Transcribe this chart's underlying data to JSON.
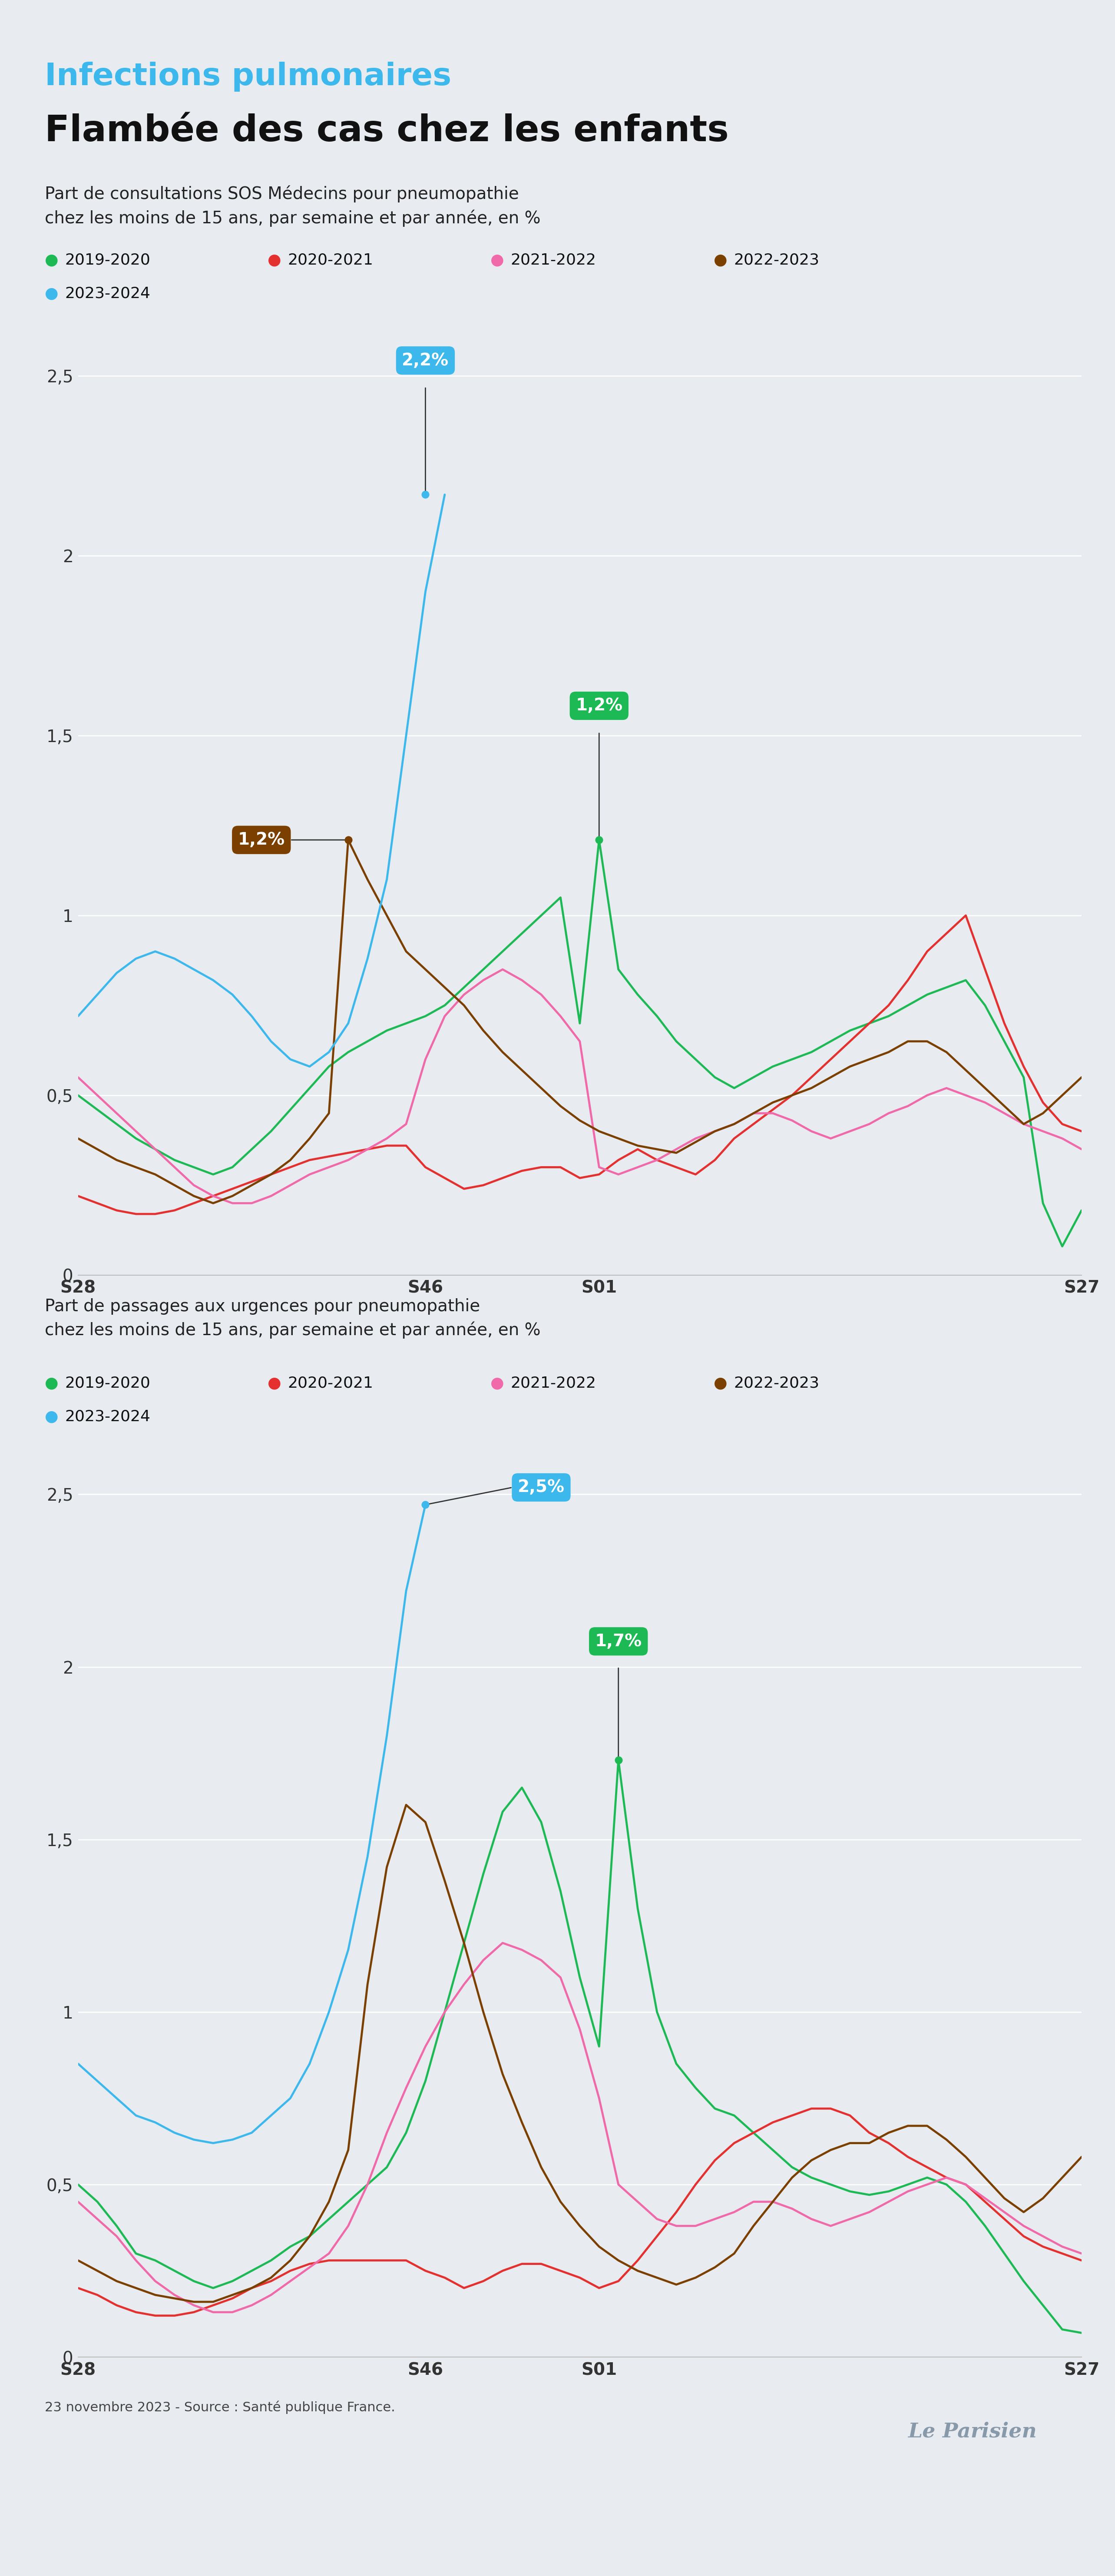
{
  "bg_color": "#e8ecf0",
  "title_line1": "Infections pulmonaires",
  "title_line2": "Flambée des cas chez les enfants",
  "title_color1": "#3db8ec",
  "title_color2": "#111111",
  "subtitle1": "Part de consultations SOS Médecins pour pneumopathie\nchez les moins de 15 ans, par semaine et par année, en %",
  "subtitle2": "Part de passages aux urgences pour pneumopathie\nchez les moins de 15 ans, par semaine et par année, en %",
  "legend_labels": [
    "2019-2020",
    "2020-2021",
    "2021-2022",
    "2022-2023",
    "2023-2024"
  ],
  "legend_colors": [
    "#1db954",
    "#e53030",
    "#f06aaa",
    "#7B3F00",
    "#3db8ec"
  ],
  "xtick_labels": [
    "S28",
    "S46",
    "S01",
    "S27"
  ],
  "xtick_positions": [
    0,
    18,
    27,
    52
  ],
  "chart1": {
    "annotation_blue": {
      "label": "2,2%",
      "x_dot": 18,
      "y_dot": 2.17,
      "x_txt": 18,
      "y_txt": 2.52
    },
    "annotation_green": {
      "label": "1,2%",
      "x_dot": 27,
      "y_dot": 1.21,
      "x_txt": 27,
      "y_txt": 1.56
    },
    "annotation_brown": {
      "label": "1,2%",
      "x_dot": 14,
      "y_dot": 1.21,
      "x_txt": 9.5,
      "y_txt": 1.21
    },
    "ylim": [
      0,
      2.65
    ],
    "yticks": [
      0,
      0.5,
      1.0,
      1.5,
      2.0,
      2.5
    ],
    "series": {
      "green": [
        0.5,
        0.46,
        0.42,
        0.38,
        0.35,
        0.32,
        0.3,
        0.28,
        0.3,
        0.35,
        0.4,
        0.46,
        0.52,
        0.58,
        0.62,
        0.65,
        0.68,
        0.7,
        0.72,
        0.75,
        0.8,
        0.85,
        0.9,
        0.95,
        1.0,
        1.05,
        0.7,
        1.21,
        0.85,
        0.78,
        0.72,
        0.65,
        0.6,
        0.55,
        0.52,
        0.55,
        0.58,
        0.6,
        0.62,
        0.65,
        0.68,
        0.7,
        0.72,
        0.75,
        0.78,
        0.8,
        0.82,
        0.75,
        0.65,
        0.55,
        0.2,
        0.08,
        0.18
      ],
      "red": [
        0.22,
        0.2,
        0.18,
        0.17,
        0.17,
        0.18,
        0.2,
        0.22,
        0.24,
        0.26,
        0.28,
        0.3,
        0.32,
        0.33,
        0.34,
        0.35,
        0.36,
        0.36,
        0.3,
        0.27,
        0.24,
        0.25,
        0.27,
        0.29,
        0.3,
        0.3,
        0.27,
        0.28,
        0.32,
        0.35,
        0.32,
        0.3,
        0.28,
        0.32,
        0.38,
        0.42,
        0.46,
        0.5,
        0.55,
        0.6,
        0.65,
        0.7,
        0.75,
        0.82,
        0.9,
        0.95,
        1.0,
        0.85,
        0.7,
        0.58,
        0.48,
        0.42,
        0.4
      ],
      "pink": [
        0.55,
        0.5,
        0.45,
        0.4,
        0.35,
        0.3,
        0.25,
        0.22,
        0.2,
        0.2,
        0.22,
        0.25,
        0.28,
        0.3,
        0.32,
        0.35,
        0.38,
        0.42,
        0.6,
        0.72,
        0.78,
        0.82,
        0.85,
        0.82,
        0.78,
        0.72,
        0.65,
        0.3,
        0.28,
        0.3,
        0.32,
        0.35,
        0.38,
        0.4,
        0.42,
        0.45,
        0.45,
        0.43,
        0.4,
        0.38,
        0.4,
        0.42,
        0.45,
        0.47,
        0.5,
        0.52,
        0.5,
        0.48,
        0.45,
        0.42,
        0.4,
        0.38,
        0.35
      ],
      "brown": [
        0.38,
        0.35,
        0.32,
        0.3,
        0.28,
        0.25,
        0.22,
        0.2,
        0.22,
        0.25,
        0.28,
        0.32,
        0.38,
        0.45,
        1.21,
        1.1,
        1.0,
        0.9,
        0.85,
        0.8,
        0.75,
        0.68,
        0.62,
        0.57,
        0.52,
        0.47,
        0.43,
        0.4,
        0.38,
        0.36,
        0.35,
        0.34,
        0.37,
        0.4,
        0.42,
        0.45,
        0.48,
        0.5,
        0.52,
        0.55,
        0.58,
        0.6,
        0.62,
        0.65,
        0.65,
        0.62,
        0.57,
        0.52,
        0.47,
        0.42,
        0.45,
        0.5,
        0.55
      ],
      "blue": [
        0.72,
        0.78,
        0.84,
        0.88,
        0.9,
        0.88,
        0.85,
        0.82,
        0.78,
        0.72,
        0.65,
        0.6,
        0.58,
        0.62,
        0.7,
        0.88,
        1.1,
        1.5,
        1.9,
        2.17,
        null,
        null,
        null,
        null,
        null,
        null,
        null,
        null,
        null,
        null,
        null,
        null,
        null,
        null,
        null,
        null,
        null,
        null,
        null,
        null,
        null,
        null,
        null,
        null,
        null,
        null,
        null,
        null,
        null,
        null,
        null,
        null,
        null
      ]
    }
  },
  "chart2": {
    "annotation_blue": {
      "label": "2,5%",
      "x_dot": 18,
      "y_dot": 2.47,
      "x_txt": 24,
      "y_txt": 2.52
    },
    "annotation_green": {
      "label": "1,7%",
      "x_dot": 28,
      "y_dot": 1.73,
      "x_txt": 28,
      "y_txt": 2.05
    },
    "ylim": [
      0,
      2.65
    ],
    "yticks": [
      0,
      0.5,
      1.0,
      1.5,
      2.0,
      2.5
    ],
    "series": {
      "green": [
        0.5,
        0.45,
        0.38,
        0.3,
        0.28,
        0.25,
        0.22,
        0.2,
        0.22,
        0.25,
        0.28,
        0.32,
        0.35,
        0.4,
        0.45,
        0.5,
        0.55,
        0.65,
        0.8,
        1.0,
        1.2,
        1.4,
        1.58,
        1.65,
        1.55,
        1.35,
        1.1,
        0.9,
        1.73,
        1.3,
        1.0,
        0.85,
        0.78,
        0.72,
        0.7,
        0.65,
        0.6,
        0.55,
        0.52,
        0.5,
        0.48,
        0.47,
        0.48,
        0.5,
        0.52,
        0.5,
        0.45,
        0.38,
        0.3,
        0.22,
        0.15,
        0.08,
        0.07
      ],
      "red": [
        0.2,
        0.18,
        0.15,
        0.13,
        0.12,
        0.12,
        0.13,
        0.15,
        0.17,
        0.2,
        0.22,
        0.25,
        0.27,
        0.28,
        0.28,
        0.28,
        0.28,
        0.28,
        0.25,
        0.23,
        0.2,
        0.22,
        0.25,
        0.27,
        0.27,
        0.25,
        0.23,
        0.2,
        0.22,
        0.28,
        0.35,
        0.42,
        0.5,
        0.57,
        0.62,
        0.65,
        0.68,
        0.7,
        0.72,
        0.72,
        0.7,
        0.65,
        0.62,
        0.58,
        0.55,
        0.52,
        0.5,
        0.45,
        0.4,
        0.35,
        0.32,
        0.3,
        0.28
      ],
      "pink": [
        0.45,
        0.4,
        0.35,
        0.28,
        0.22,
        0.18,
        0.15,
        0.13,
        0.13,
        0.15,
        0.18,
        0.22,
        0.26,
        0.3,
        0.38,
        0.5,
        0.65,
        0.78,
        0.9,
        1.0,
        1.08,
        1.15,
        1.2,
        1.18,
        1.15,
        1.1,
        0.95,
        0.75,
        0.5,
        0.45,
        0.4,
        0.38,
        0.38,
        0.4,
        0.42,
        0.45,
        0.45,
        0.43,
        0.4,
        0.38,
        0.4,
        0.42,
        0.45,
        0.48,
        0.5,
        0.52,
        0.5,
        0.46,
        0.42,
        0.38,
        0.35,
        0.32,
        0.3
      ],
      "brown": [
        0.28,
        0.25,
        0.22,
        0.2,
        0.18,
        0.17,
        0.16,
        0.16,
        0.18,
        0.2,
        0.23,
        0.28,
        0.35,
        0.45,
        0.6,
        1.08,
        1.42,
        1.6,
        1.55,
        1.38,
        1.2,
        1.0,
        0.82,
        0.68,
        0.55,
        0.45,
        0.38,
        0.32,
        0.28,
        0.25,
        0.23,
        0.21,
        0.23,
        0.26,
        0.3,
        0.38,
        0.45,
        0.52,
        0.57,
        0.6,
        0.62,
        0.62,
        0.65,
        0.67,
        0.67,
        0.63,
        0.58,
        0.52,
        0.46,
        0.42,
        0.46,
        0.52,
        0.58
      ],
      "blue": [
        0.85,
        0.8,
        0.75,
        0.7,
        0.68,
        0.65,
        0.63,
        0.62,
        0.63,
        0.65,
        0.7,
        0.75,
        0.85,
        1.0,
        1.18,
        1.45,
        1.8,
        2.22,
        2.47,
        null,
        null,
        null,
        null,
        null,
        null,
        null,
        null,
        null,
        null,
        null,
        null,
        null,
        null,
        null,
        null,
        null,
        null,
        null,
        null,
        null,
        null,
        null,
        null,
        null,
        null,
        null,
        null,
        null,
        null,
        null,
        null,
        null,
        null
      ]
    }
  },
  "footer": "23 novembre 2023 - Source : Santé publique France.",
  "logo_text": "Le Parisien"
}
